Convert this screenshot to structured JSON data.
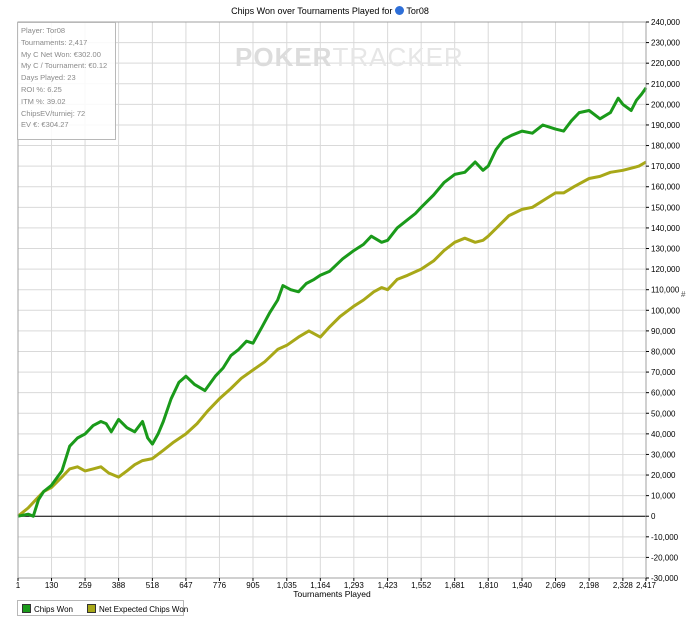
{
  "title": {
    "prefix": "Chips Won over Tournaments Played for",
    "player": "Tor08"
  },
  "watermark": {
    "part1": "POKER",
    "part2": "TRACKER"
  },
  "side_marker": "#",
  "stats": [
    "Player: Tor08",
    "Tournaments: 2,417",
    "My C Net Won: €302.00",
    "My C / Tournament: €0.12",
    "Days Played: 23",
    "ROI %: 6.25",
    "ITM %: 39.02",
    "ChipsEV/turniej: 72",
    "EV €: €304.27"
  ],
  "colors": {
    "chips_won": "#1a9a1a",
    "net_expected": "#a8a818",
    "grid": "#d9d9d9",
    "zero_line": "#000000"
  },
  "chart_data": {
    "type": "line",
    "title": "Chips Won over Tournaments Played for Tor08",
    "xlabel": "Tournaments Played",
    "ylabel": "",
    "xlim": [
      1,
      2417
    ],
    "ylim": [
      -30000,
      240000
    ],
    "x_ticks": [
      1,
      130,
      259,
      388,
      518,
      647,
      776,
      905,
      1035,
      1164,
      1293,
      1423,
      1552,
      1681,
      1810,
      1940,
      2069,
      2198,
      2328,
      2417
    ],
    "x_tick_labels": [
      "1",
      "130",
      "259",
      "388",
      "518",
      "647",
      "776",
      "905",
      "1,035",
      "1,164",
      "1,293",
      "1,423",
      "1,552",
      "1,681",
      "1,810",
      "1,940",
      "2,069",
      "2,198",
      "2,328",
      "2,417"
    ],
    "y_ticks": [
      -30000,
      -20000,
      -10000,
      0,
      10000,
      20000,
      30000,
      40000,
      50000,
      60000,
      70000,
      80000,
      90000,
      100000,
      110000,
      120000,
      130000,
      140000,
      150000,
      160000,
      170000,
      180000,
      190000,
      200000,
      210000,
      220000,
      230000,
      240000
    ],
    "y_tick_labels": [
      "-30,000",
      "-20,000",
      "-10,000",
      "0",
      "10,000",
      "20,000",
      "30,000",
      "40,000",
      "50,000",
      "60,000",
      "70,000",
      "80,000",
      "90,000",
      "100,000",
      "110,000",
      "120,000",
      "130,000",
      "140,000",
      "150,000",
      "160,000",
      "170,000",
      "180,000",
      "190,000",
      "200,000",
      "210,000",
      "220,000",
      "230,000",
      "240,000"
    ],
    "grid": true,
    "legend": "bottom-left",
    "series": [
      {
        "name": "Chips Won",
        "color": "#1a9a1a",
        "x": [
          1,
          40,
          60,
          80,
          100,
          130,
          170,
          200,
          230,
          259,
          290,
          320,
          340,
          360,
          388,
          420,
          450,
          480,
          500,
          518,
          540,
          560,
          590,
          620,
          647,
          680,
          720,
          760,
          790,
          820,
          850,
          880,
          905,
          940,
          970,
          1000,
          1020,
          1050,
          1080,
          1110,
          1140,
          1164,
          1200,
          1250,
          1293,
          1330,
          1360,
          1400,
          1423,
          1460,
          1500,
          1530,
          1552,
          1600,
          1640,
          1681,
          1720,
          1760,
          1790,
          1810,
          1840,
          1870,
          1900,
          1940,
          1980,
          2020,
          2069,
          2100,
          2130,
          2160,
          2198,
          2240,
          2280,
          2310,
          2328,
          2360,
          2380,
          2400,
          2417
        ],
        "values": [
          0,
          1000,
          0,
          8000,
          12000,
          15000,
          22000,
          34000,
          38000,
          40000,
          44000,
          46000,
          45000,
          41000,
          47000,
          43000,
          41000,
          46000,
          38000,
          35000,
          40000,
          46000,
          57000,
          65000,
          68000,
          64000,
          61000,
          68000,
          72000,
          78000,
          81000,
          85000,
          84000,
          92000,
          99000,
          105000,
          112000,
          110000,
          109000,
          113000,
          115000,
          117000,
          119000,
          125000,
          129000,
          132000,
          136000,
          133000,
          134000,
          140000,
          144000,
          147000,
          150000,
          156000,
          162000,
          166000,
          167000,
          172000,
          168000,
          170000,
          178000,
          183000,
          185000,
          187000,
          186000,
          190000,
          188000,
          187000,
          192000,
          196000,
          197000,
          193000,
          196000,
          203000,
          200000,
          197000,
          202000,
          205000,
          208000
        ]
      },
      {
        "name": "Net Expected Chips Won",
        "color": "#a8a818",
        "x": [
          1,
          40,
          70,
          100,
          130,
          170,
          200,
          230,
          259,
          290,
          320,
          350,
          388,
          420,
          450,
          480,
          518,
          560,
          600,
          647,
          690,
          730,
          776,
          820,
          860,
          905,
          950,
          1000,
          1035,
          1080,
          1120,
          1164,
          1200,
          1240,
          1293,
          1330,
          1370,
          1400,
          1423,
          1460,
          1500,
          1552,
          1600,
          1640,
          1681,
          1720,
          1760,
          1790,
          1810,
          1850,
          1890,
          1940,
          1980,
          2030,
          2069,
          2100,
          2140,
          2198,
          2240,
          2280,
          2328,
          2360,
          2390,
          2417
        ],
        "values": [
          0,
          4000,
          8000,
          12000,
          14000,
          19000,
          23000,
          24000,
          22000,
          23000,
          24000,
          21000,
          19000,
          22000,
          25000,
          27000,
          28000,
          32000,
          36000,
          40000,
          45000,
          51000,
          57000,
          62000,
          67000,
          71000,
          75000,
          81000,
          83000,
          87000,
          90000,
          87000,
          92000,
          97000,
          102000,
          105000,
          109000,
          111000,
          110000,
          115000,
          117000,
          120000,
          124000,
          129000,
          133000,
          135000,
          133000,
          134000,
          136000,
          141000,
          146000,
          149000,
          150000,
          154000,
          157000,
          157000,
          160000,
          164000,
          165000,
          167000,
          168000,
          169000,
          170000,
          172000
        ]
      }
    ]
  },
  "legend": {
    "chips_won": "Chips Won",
    "net_expected": "Net Expected Chips Won"
  }
}
